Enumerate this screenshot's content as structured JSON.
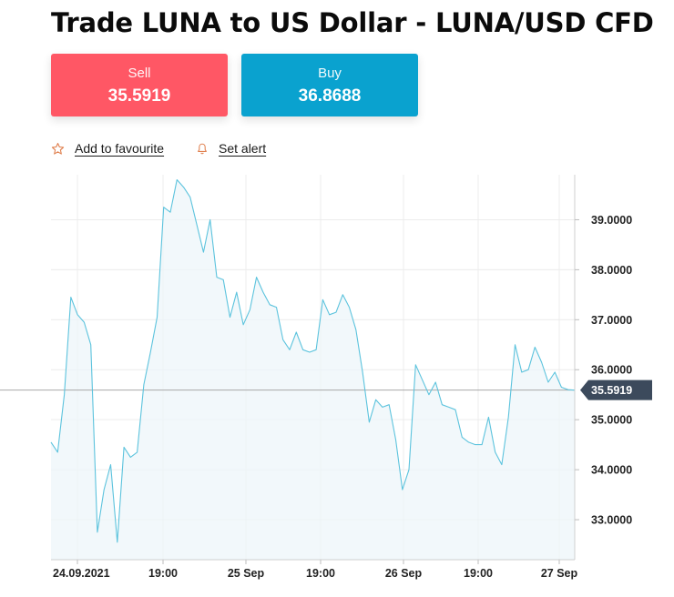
{
  "title": "Trade LUNA to US Dollar - LUNA/USD CFD",
  "sell": {
    "label": "Sell",
    "price": "35.5919"
  },
  "buy": {
    "label": "Buy",
    "price": "36.8688"
  },
  "actions": {
    "favourite": "Add to favourite",
    "alert": "Set alert"
  },
  "colors": {
    "sell": "#ff5765",
    "buy": "#0aa2cf",
    "line": "#5cc3dd",
    "price_tag": "#3c4a5c"
  },
  "chart_data": {
    "type": "area",
    "title": "",
    "xlabel": "",
    "ylabel": "",
    "ylim": [
      32.2,
      39.9
    ],
    "yticks": [
      "39.0000",
      "38.0000",
      "37.0000",
      "36.0000",
      "35.0000",
      "34.0000",
      "33.0000"
    ],
    "x_tick_labels": [
      "24.09.2021",
      "19:00",
      "25 Sep",
      "19:00",
      "26 Sep",
      "19:00",
      "27 Sep"
    ],
    "current_price_label": "35.5919",
    "current_price": 35.5919,
    "grid": true,
    "series": [
      {
        "values": [
          34.55,
          34.35,
          35.5,
          37.45,
          37.1,
          36.95,
          36.5,
          32.75,
          33.6,
          34.1,
          32.55,
          34.45,
          34.25,
          34.35,
          35.7,
          36.35,
          37.05,
          39.25,
          39.15,
          39.8,
          39.65,
          39.45,
          38.9,
          38.35,
          39.0,
          37.85,
          37.8,
          37.05,
          37.55,
          36.9,
          37.2,
          37.85,
          37.55,
          37.3,
          37.25,
          36.6,
          36.4,
          36.75,
          36.4,
          36.35,
          36.4,
          37.4,
          37.1,
          37.15,
          37.5,
          37.25,
          36.8,
          35.95,
          34.95,
          35.4,
          35.25,
          35.3,
          34.6,
          33.6,
          34.0,
          36.1,
          35.8,
          35.5,
          35.75,
          35.3,
          35.25,
          35.2,
          34.65,
          34.55,
          34.5,
          34.5,
          35.05,
          34.35,
          34.1,
          35.05,
          36.5,
          35.95,
          36.0,
          36.45,
          36.15,
          35.75,
          35.95,
          35.65,
          35.6,
          35.5919
        ]
      }
    ]
  }
}
